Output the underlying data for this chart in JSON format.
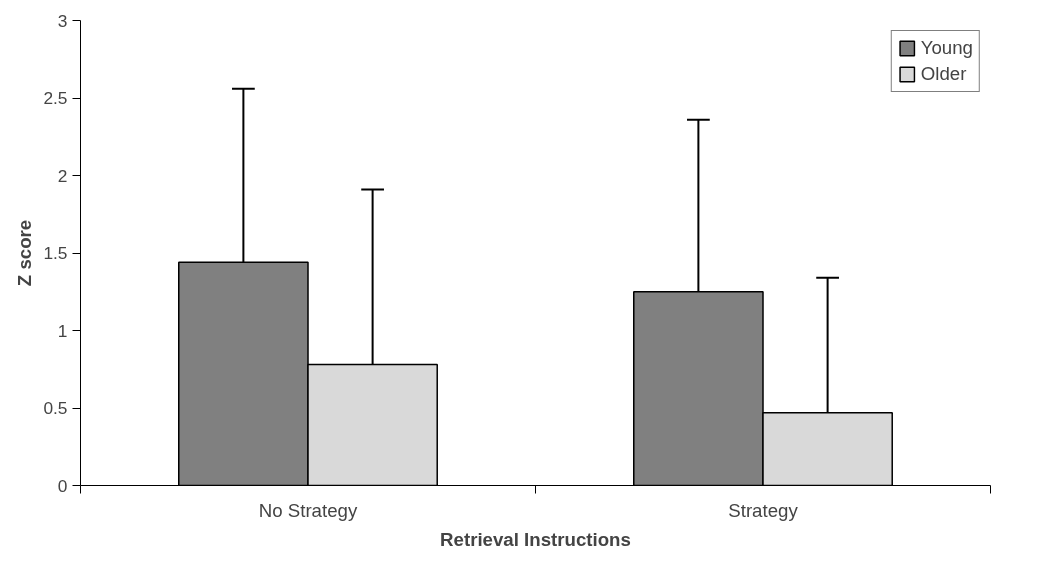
{
  "chart_data": {
    "type": "bar",
    "xlabel": "Retrieval Instructions",
    "ylabel": "Z score",
    "categories": [
      "No Strategy",
      "Strategy"
    ],
    "series": [
      {
        "name": "Young",
        "color": "#808080",
        "values": [
          1.44,
          1.25
        ],
        "errors": [
          [
            1.44,
            2.56
          ],
          [
            1.25,
            2.36
          ]
        ]
      },
      {
        "name": "Older",
        "color": "#d9d9d9",
        "values": [
          0.78,
          0.47
        ],
        "errors": [
          [
            0.78,
            1.91
          ],
          [
            0.47,
            1.34
          ]
        ]
      }
    ],
    "ylim": [
      0,
      3
    ],
    "yticks": [
      0,
      0.5,
      1,
      1.5,
      2,
      2.5,
      3
    ],
    "grid": false,
    "legend": "top right"
  }
}
